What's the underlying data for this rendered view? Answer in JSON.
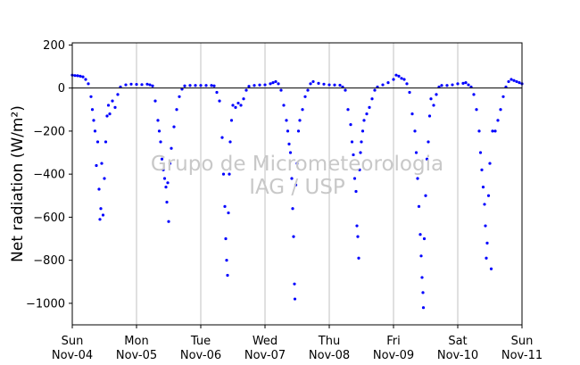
{
  "chart_data": {
    "type": "scatter",
    "title": "",
    "ylabel": "Net radiation (W/m²)",
    "xlabel": "",
    "ylim": [
      -1100,
      210
    ],
    "xlim": [
      "2018-11-04T00:00",
      "2018-11-11T00:00"
    ],
    "yticks": [
      200,
      0,
      -200,
      -400,
      -600,
      -800,
      -1000
    ],
    "xticks": [
      {
        "x": "2018-11-04T00:00",
        "day": "Sun",
        "date": "Nov-04"
      },
      {
        "x": "2018-11-05T00:00",
        "day": "Mon",
        "date": "Nov-05"
      },
      {
        "x": "2018-11-06T00:00",
        "day": "Tue",
        "date": "Nov-06"
      },
      {
        "x": "2018-11-07T00:00",
        "day": "Wed",
        "date": "Nov-07"
      },
      {
        "x": "2018-11-08T00:00",
        "day": "Thu",
        "date": "Nov-08"
      },
      {
        "x": "2018-11-09T00:00",
        "day": "Fri",
        "date": "Nov-09"
      },
      {
        "x": "2018-11-10T00:00",
        "day": "Sat",
        "date": "Nov-10"
      },
      {
        "x": "2018-11-11T00:00",
        "day": "Sun",
        "date": "Nov-11"
      }
    ],
    "grid": "vertical at day ticks",
    "zero_line": 0,
    "point_color": "#0000ff",
    "series": [
      {
        "points": [
          [
            "2018-11-04T00:00",
            60
          ],
          [
            "2018-11-04T01:00",
            58
          ],
          [
            "2018-11-04T02:00",
            57
          ],
          [
            "2018-11-04T03:00",
            55
          ],
          [
            "2018-11-04T04:00",
            52
          ],
          [
            "2018-11-04T05:00",
            40
          ],
          [
            "2018-11-04T06:00",
            20
          ],
          [
            "2018-11-04T07:00",
            -40
          ],
          [
            "2018-11-04T07:30",
            -100
          ],
          [
            "2018-11-04T08:00",
            -150
          ],
          [
            "2018-11-04T08:30",
            -200
          ],
          [
            "2018-11-04T09:00",
            -360
          ],
          [
            "2018-11-04T09:30",
            -250
          ],
          [
            "2018-11-04T10:00",
            -470
          ],
          [
            "2018-11-04T10:20",
            -610
          ],
          [
            "2018-11-04T10:40",
            -560
          ],
          [
            "2018-11-04T11:00",
            -350
          ],
          [
            "2018-11-04T11:30",
            -590
          ],
          [
            "2018-11-04T12:00",
            -420
          ],
          [
            "2018-11-04T12:30",
            -250
          ],
          [
            "2018-11-04T13:00",
            -130
          ],
          [
            "2018-11-04T13:30",
            -80
          ],
          [
            "2018-11-04T14:00",
            -120
          ],
          [
            "2018-11-04T15:00",
            -60
          ],
          [
            "2018-11-04T16:00",
            -90
          ],
          [
            "2018-11-04T17:00",
            -30
          ],
          [
            "2018-11-04T18:00",
            5
          ],
          [
            "2018-11-04T20:00",
            15
          ],
          [
            "2018-11-04T22:00",
            18
          ],
          [
            "2018-11-05T00:00",
            17
          ],
          [
            "2018-11-05T02:00",
            16
          ],
          [
            "2018-11-05T04:00",
            18
          ],
          [
            "2018-11-05T05:00",
            15
          ],
          [
            "2018-11-05T06:00",
            10
          ],
          [
            "2018-11-05T07:00",
            -60
          ],
          [
            "2018-11-05T08:00",
            -150
          ],
          [
            "2018-11-05T08:30",
            -200
          ],
          [
            "2018-11-05T09:00",
            -250
          ],
          [
            "2018-11-05T09:30",
            -330
          ],
          [
            "2018-11-05T10:00",
            -380
          ],
          [
            "2018-11-05T10:30",
            -420
          ],
          [
            "2018-11-05T11:00",
            -460
          ],
          [
            "2018-11-05T11:20",
            -530
          ],
          [
            "2018-11-05T11:40",
            -440
          ],
          [
            "2018-11-05T12:00",
            -620
          ],
          [
            "2018-11-05T12:30",
            -350
          ],
          [
            "2018-11-05T13:00",
            -280
          ],
          [
            "2018-11-05T14:00",
            -180
          ],
          [
            "2018-11-05T15:00",
            -100
          ],
          [
            "2018-11-05T16:00",
            -40
          ],
          [
            "2018-11-05T17:00",
            -5
          ],
          [
            "2018-11-05T18:00",
            10
          ],
          [
            "2018-11-05T20:00",
            12
          ],
          [
            "2018-11-05T22:00",
            12
          ],
          [
            "2018-11-06T00:00",
            12
          ],
          [
            "2018-11-06T02:00",
            12
          ],
          [
            "2018-11-06T04:00",
            12
          ],
          [
            "2018-11-06T05:00",
            10
          ],
          [
            "2018-11-06T06:00",
            -20
          ],
          [
            "2018-11-06T07:00",
            -60
          ],
          [
            "2018-11-06T08:00",
            -230
          ],
          [
            "2018-11-06T08:30",
            -400
          ],
          [
            "2018-11-06T09:00",
            -550
          ],
          [
            "2018-11-06T09:20",
            -700
          ],
          [
            "2018-11-06T09:40",
            -800
          ],
          [
            "2018-11-06T10:00",
            -870
          ],
          [
            "2018-11-06T10:20",
            -580
          ],
          [
            "2018-11-06T10:40",
            -400
          ],
          [
            "2018-11-06T11:00",
            -250
          ],
          [
            "2018-11-06T11:30",
            -150
          ],
          [
            "2018-11-06T12:00",
            -80
          ],
          [
            "2018-11-06T13:00",
            -90
          ],
          [
            "2018-11-06T14:00",
            -70
          ],
          [
            "2018-11-06T15:00",
            -80
          ],
          [
            "2018-11-06T16:00",
            -50
          ],
          [
            "2018-11-06T17:00",
            -10
          ],
          [
            "2018-11-06T18:00",
            8
          ],
          [
            "2018-11-06T20:00",
            12
          ],
          [
            "2018-11-06T22:00",
            14
          ],
          [
            "2018-11-07T00:00",
            15
          ],
          [
            "2018-11-07T02:00",
            20
          ],
          [
            "2018-11-07T03:00",
            25
          ],
          [
            "2018-11-07T04:00",
            30
          ],
          [
            "2018-11-07T05:00",
            20
          ],
          [
            "2018-11-07T06:00",
            -10
          ],
          [
            "2018-11-07T07:00",
            -80
          ],
          [
            "2018-11-07T08:00",
            -150
          ],
          [
            "2018-11-07T08:30",
            -200
          ],
          [
            "2018-11-07T09:00",
            -260
          ],
          [
            "2018-11-07T09:30",
            -300
          ],
          [
            "2018-11-07T10:00",
            -420
          ],
          [
            "2018-11-07T10:20",
            -560
          ],
          [
            "2018-11-07T10:40",
            -690
          ],
          [
            "2018-11-07T11:00",
            -910
          ],
          [
            "2018-11-07T11:10",
            -980
          ],
          [
            "2018-11-07T11:30",
            -450
          ],
          [
            "2018-11-07T12:00",
            -350
          ],
          [
            "2018-11-07T12:30",
            -200
          ],
          [
            "2018-11-07T13:00",
            -150
          ],
          [
            "2018-11-07T14:00",
            -100
          ],
          [
            "2018-11-07T15:00",
            -40
          ],
          [
            "2018-11-07T16:00",
            -10
          ],
          [
            "2018-11-07T17:00",
            20
          ],
          [
            "2018-11-07T18:00",
            30
          ],
          [
            "2018-11-07T20:00",
            22
          ],
          [
            "2018-11-07T22:00",
            18
          ],
          [
            "2018-11-08T00:00",
            15
          ],
          [
            "2018-11-08T02:00",
            14
          ],
          [
            "2018-11-08T04:00",
            13
          ],
          [
            "2018-11-08T05:00",
            5
          ],
          [
            "2018-11-08T06:00",
            -10
          ],
          [
            "2018-11-08T07:00",
            -100
          ],
          [
            "2018-11-08T08:00",
            -170
          ],
          [
            "2018-11-08T08:30",
            -250
          ],
          [
            "2018-11-08T09:00",
            -310
          ],
          [
            "2018-11-08T09:30",
            -420
          ],
          [
            "2018-11-08T10:00",
            -480
          ],
          [
            "2018-11-08T10:20",
            -640
          ],
          [
            "2018-11-08T10:40",
            -690
          ],
          [
            "2018-11-08T11:00",
            -790
          ],
          [
            "2018-11-08T11:20",
            -380
          ],
          [
            "2018-11-08T11:40",
            -300
          ],
          [
            "2018-11-08T12:00",
            -250
          ],
          [
            "2018-11-08T12:30",
            -200
          ],
          [
            "2018-11-08T13:00",
            -150
          ],
          [
            "2018-11-08T14:00",
            -120
          ],
          [
            "2018-11-08T15:00",
            -90
          ],
          [
            "2018-11-08T16:00",
            -50
          ],
          [
            "2018-11-08T17:00",
            -10
          ],
          [
            "2018-11-08T18:00",
            5
          ],
          [
            "2018-11-08T20:00",
            15
          ],
          [
            "2018-11-08T22:00",
            25
          ],
          [
            "2018-11-09T00:00",
            40
          ],
          [
            "2018-11-09T01:00",
            60
          ],
          [
            "2018-11-09T02:00",
            55
          ],
          [
            "2018-11-09T03:00",
            45
          ],
          [
            "2018-11-09T04:00",
            40
          ],
          [
            "2018-11-09T05:00",
            20
          ],
          [
            "2018-11-09T06:00",
            -20
          ],
          [
            "2018-11-09T07:00",
            -120
          ],
          [
            "2018-11-09T08:00",
            -200
          ],
          [
            "2018-11-09T08:30",
            -300
          ],
          [
            "2018-11-09T09:00",
            -420
          ],
          [
            "2018-11-09T09:30",
            -550
          ],
          [
            "2018-11-09T10:00",
            -680
          ],
          [
            "2018-11-09T10:20",
            -780
          ],
          [
            "2018-11-09T10:40",
            -880
          ],
          [
            "2018-11-09T11:00",
            -950
          ],
          [
            "2018-11-09T11:10",
            -1020
          ],
          [
            "2018-11-09T11:30",
            -700
          ],
          [
            "2018-11-09T12:00",
            -500
          ],
          [
            "2018-11-09T12:30",
            -330
          ],
          [
            "2018-11-09T13:00",
            -250
          ],
          [
            "2018-11-09T13:30",
            -130
          ],
          [
            "2018-11-09T14:00",
            -50
          ],
          [
            "2018-11-09T15:00",
            -80
          ],
          [
            "2018-11-09T16:00",
            -30
          ],
          [
            "2018-11-09T17:00",
            5
          ],
          [
            "2018-11-09T18:00",
            12
          ],
          [
            "2018-11-09T20:00",
            12
          ],
          [
            "2018-11-09T22:00",
            15
          ],
          [
            "2018-11-10T00:00",
            20
          ],
          [
            "2018-11-10T02:00",
            22
          ],
          [
            "2018-11-10T03:00",
            25
          ],
          [
            "2018-11-10T04:00",
            15
          ],
          [
            "2018-11-10T05:00",
            5
          ],
          [
            "2018-11-10T06:00",
            -30
          ],
          [
            "2018-11-10T07:00",
            -100
          ],
          [
            "2018-11-10T08:00",
            -200
          ],
          [
            "2018-11-10T08:30",
            -300
          ],
          [
            "2018-11-10T09:00",
            -380
          ],
          [
            "2018-11-10T09:30",
            -460
          ],
          [
            "2018-11-10T10:00",
            -540
          ],
          [
            "2018-11-10T10:20",
            -640
          ],
          [
            "2018-11-10T10:40",
            -790
          ],
          [
            "2018-11-10T11:00",
            -720
          ],
          [
            "2018-11-10T11:30",
            -500
          ],
          [
            "2018-11-10T12:00",
            -350
          ],
          [
            "2018-11-10T12:30",
            -840
          ],
          [
            "2018-11-10T13:00",
            -200
          ],
          [
            "2018-11-10T14:00",
            -200
          ],
          [
            "2018-11-10T15:00",
            -150
          ],
          [
            "2018-11-10T16:00",
            -100
          ],
          [
            "2018-11-10T17:00",
            -40
          ],
          [
            "2018-11-10T18:00",
            5
          ],
          [
            "2018-11-10T19:00",
            30
          ],
          [
            "2018-11-10T20:00",
            40
          ],
          [
            "2018-11-10T21:00",
            35
          ],
          [
            "2018-11-10T22:00",
            30
          ],
          [
            "2018-11-10T23:00",
            25
          ],
          [
            "2018-11-11T00:00",
            20
          ]
        ]
      }
    ]
  },
  "watermark": {
    "line1": "Grupo de Micrometeorologia",
    "line2": "IAG / USP"
  }
}
